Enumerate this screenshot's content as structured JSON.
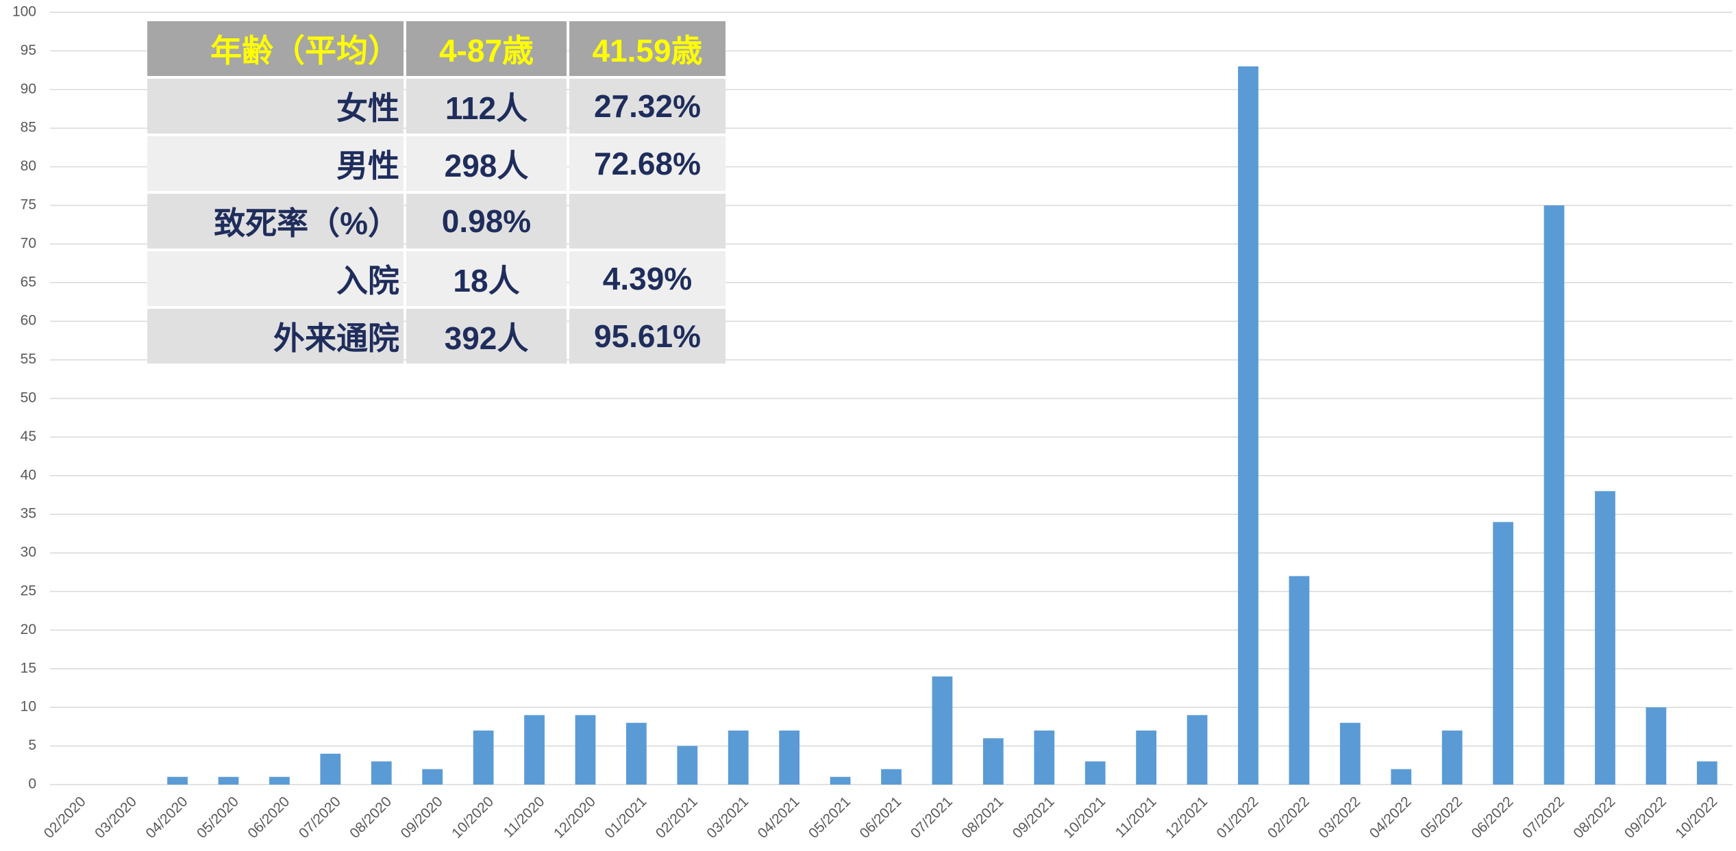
{
  "chart_data": {
    "type": "bar",
    "categories": [
      "02/2020",
      "03/2020",
      "04/2020",
      "05/2020",
      "06/2020",
      "07/2020",
      "08/2020",
      "09/2020",
      "10/2020",
      "11/2020",
      "12/2020",
      "01/2021",
      "02/2021",
      "03/2021",
      "04/2021",
      "05/2021",
      "06/2021",
      "07/2021",
      "08/2021",
      "09/2021",
      "10/2021",
      "11/2021",
      "12/2021",
      "01/2022",
      "02/2022",
      "03/2022",
      "04/2022",
      "05/2022",
      "06/2022",
      "07/2022",
      "08/2022",
      "09/2022",
      "10/2022"
    ],
    "values": [
      0,
      0,
      1,
      1,
      1,
      4,
      3,
      2,
      7,
      9,
      9,
      8,
      5,
      7,
      7,
      1,
      2,
      14,
      6,
      7,
      3,
      7,
      9,
      93,
      27,
      8,
      2,
      7,
      34,
      75,
      38,
      10,
      3
    ],
    "color": "#5b9bd5",
    "ylim": [
      0,
      100
    ],
    "yticks": [
      0,
      5,
      10,
      15,
      20,
      25,
      30,
      35,
      40,
      45,
      50,
      55,
      60,
      65,
      70,
      75,
      80,
      85,
      90,
      95,
      100
    ],
    "grid": true
  },
  "table": {
    "rows": [
      [
        "年齢（平均）",
        "4-87歳",
        "41.59歳"
      ],
      [
        "女性",
        "112人",
        "27.32%"
      ],
      [
        "男性",
        "298人",
        "72.68%"
      ],
      [
        "致死率（%）",
        "0.98%"
      ],
      [
        "入院",
        "18人",
        "4.39%"
      ],
      [
        "外来通院",
        "392人",
        "95.61%"
      ]
    ]
  }
}
